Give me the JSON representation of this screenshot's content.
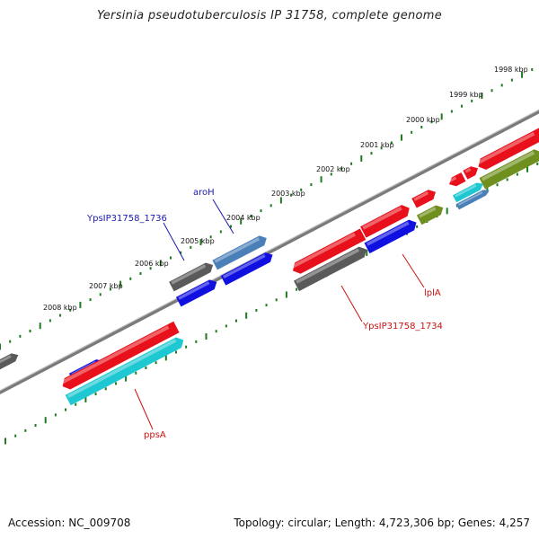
{
  "title": "Yersinia pseudotuberculosis IP 31758, complete genome",
  "accession": "Accession: NC_009708",
  "topology": "Topology: circular; Length: 4,723,306 bp; Genes: 4,257",
  "ruler_labels": [
    "1998 kbp",
    "1999 kbp",
    "2000 kbp",
    "2001 kbp",
    "2002 kbp",
    "2003 kbp",
    "2004 kbp",
    "2005 kbp",
    "2006 kbp",
    "2007 kbp",
    "2008 kbp"
  ],
  "gene_labels": {
    "aroH": "aroH",
    "ypsip_1736": "YpsIP31758_1736",
    "lpla": "lplA",
    "ypsip_1734": "YpsIP31758_1734",
    "ppsa": "ppsA"
  },
  "colors": {
    "red": "#e8101a",
    "blue": "#1010e0",
    "gray": "#5a5a5a",
    "steel": "#4a7fb8",
    "cyan": "#1ec8d2",
    "olive": "#6f8f1e",
    "backbone": "#8a8a8a",
    "tick": "#1f7a1f",
    "label_blue": "#1a1ab0",
    "label_red": "#cc1010"
  }
}
